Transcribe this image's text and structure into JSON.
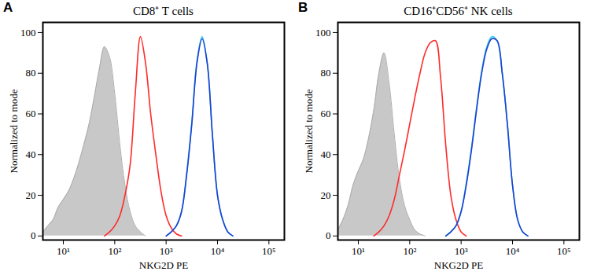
{
  "chart_data": [
    {
      "type": "line",
      "panel": "A",
      "title": "CD8⁺ T cells",
      "x_label": "NKG2D PE",
      "y_label": "Normalized to mode",
      "log": "x",
      "xlim": [
        4,
        200000
      ],
      "xticks": [
        {
          "value": 10,
          "label": "10¹"
        },
        {
          "value": 100,
          "label": "10²"
        },
        {
          "value": 1000,
          "label": "10³"
        },
        {
          "value": 10000,
          "label": "10⁴"
        },
        {
          "value": 100000,
          "label": "10⁵"
        }
      ],
      "ylim": [
        -2,
        105
      ],
      "yticks": [
        0,
        20,
        40,
        60,
        80,
        100
      ],
      "x": [
        4,
        5,
        6.3,
        7.9,
        10,
        12.6,
        15.8,
        20,
        25.1,
        31.6,
        39.8,
        50.1,
        63.1,
        79.4,
        100,
        125.9,
        158.5,
        199.5,
        251.2,
        316.2,
        398.1,
        501.2,
        631,
        794.3,
        1000,
        1258.9,
        1584.9,
        1995.3,
        2511.9,
        3162.3,
        3981.1,
        5011.9,
        6309.6,
        7943.3,
        10000,
        12589.3,
        15848.9,
        19952.6,
        25118.9,
        31622.8,
        39810.7
      ],
      "series": [
        {
          "type": "area",
          "color": "#c8c8c8",
          "values": [
            2,
            5,
            8,
            14,
            18,
            22,
            28,
            36,
            45,
            55,
            68,
            82,
            93,
            88,
            70,
            45,
            25,
            12,
            5,
            2,
            0,
            null,
            null,
            null,
            null,
            null,
            null,
            null,
            null,
            null,
            null,
            null,
            null,
            null,
            null,
            null,
            null,
            null,
            null,
            null,
            null
          ]
        },
        {
          "color": "#ff2a2a",
          "values": [
            null,
            null,
            null,
            null,
            null,
            null,
            null,
            null,
            null,
            null,
            null,
            null,
            0,
            2,
            5,
            10,
            20,
            35,
            70,
            98,
            85,
            60,
            40,
            22,
            10,
            4,
            1,
            0,
            null,
            null,
            null,
            null,
            null,
            null,
            null,
            null,
            null,
            null,
            null,
            null,
            null
          ]
        },
        {
          "color": "#33ccee",
          "values": [
            null,
            null,
            null,
            null,
            null,
            null,
            null,
            null,
            null,
            null,
            null,
            null,
            null,
            null,
            null,
            null,
            null,
            null,
            null,
            null,
            null,
            null,
            null,
            null,
            0,
            2,
            5,
            12,
            31,
            56,
            86,
            98,
            85,
            50,
            20,
            8,
            2,
            0,
            null,
            null,
            null
          ]
        },
        {
          "color": "#1f3fd0",
          "values": [
            null,
            null,
            null,
            null,
            null,
            null,
            null,
            null,
            null,
            null,
            null,
            null,
            null,
            null,
            null,
            null,
            null,
            null,
            null,
            null,
            null,
            null,
            null,
            null,
            0,
            2,
            5,
            12,
            30,
            55,
            85,
            97,
            85,
            50,
            20,
            8,
            2,
            0,
            null,
            null,
            null
          ]
        }
      ]
    },
    {
      "type": "line",
      "panel": "B",
      "title": "CD16⁺CD56⁺ NK cells",
      "x_label": "NKG2D PE",
      "y_label": "Normalized to mode",
      "log": "x",
      "xlim": [
        4,
        200000
      ],
      "xticks": [
        {
          "value": 10,
          "label": "10¹"
        },
        {
          "value": 100,
          "label": "10²"
        },
        {
          "value": 1000,
          "label": "10³"
        },
        {
          "value": 10000,
          "label": "10⁴"
        },
        {
          "value": 100000,
          "label": "10⁵"
        }
      ],
      "ylim": [
        -2,
        105
      ],
      "yticks": [
        0,
        20,
        40,
        60,
        80,
        100
      ],
      "x": [
        4,
        5,
        6.3,
        7.9,
        10,
        12.6,
        15.8,
        20,
        25.1,
        31.6,
        39.8,
        50.1,
        63.1,
        79.4,
        100,
        125.9,
        158.5,
        199.5,
        251.2,
        316.2,
        398.1,
        501.2,
        631,
        794.3,
        1000,
        1258.9,
        1584.9,
        1995.3,
        2511.9,
        3162.3,
        3981.1,
        5011.9,
        6309.6,
        7943.3,
        10000,
        12589.3,
        15848.9,
        19952.6,
        25118.9,
        31622.8,
        39810.7
      ],
      "series": [
        {
          "type": "area",
          "color": "#c8c8c8",
          "values": [
            3,
            8,
            15,
            25,
            32,
            38,
            48,
            62,
            80,
            90,
            75,
            50,
            28,
            15,
            8,
            3,
            1,
            0,
            null,
            null,
            null,
            null,
            null,
            null,
            null,
            null,
            null,
            null,
            null,
            null,
            null,
            null,
            null,
            null,
            null,
            null,
            null,
            null,
            null,
            null,
            null
          ]
        },
        {
          "color": "#ff2a2a",
          "values": [
            null,
            null,
            null,
            null,
            null,
            null,
            null,
            0,
            2,
            5,
            10,
            18,
            30,
            42,
            55,
            68,
            80,
            90,
            95,
            96,
            78,
            45,
            20,
            8,
            2,
            0,
            null,
            null,
            null,
            null,
            null,
            null,
            null,
            null,
            null,
            null,
            null,
            null,
            null,
            null,
            null
          ]
        },
        {
          "color": "#33ccee",
          "values": [
            null,
            null,
            null,
            null,
            null,
            null,
            null,
            null,
            null,
            null,
            null,
            null,
            null,
            null,
            null,
            null,
            null,
            null,
            null,
            null,
            null,
            0,
            2,
            5,
            12,
            26,
            43,
            63,
            81,
            93,
            98,
            96,
            80,
            55,
            25,
            8,
            2,
            0,
            null,
            null,
            null
          ]
        },
        {
          "color": "#1f3fd0",
          "values": [
            null,
            null,
            null,
            null,
            null,
            null,
            null,
            null,
            null,
            null,
            null,
            null,
            null,
            null,
            null,
            null,
            null,
            null,
            null,
            null,
            null,
            0,
            2,
            5,
            12,
            25,
            42,
            62,
            80,
            92,
            97,
            96,
            80,
            55,
            25,
            8,
            2,
            0,
            null,
            null,
            null
          ]
        }
      ]
    }
  ]
}
